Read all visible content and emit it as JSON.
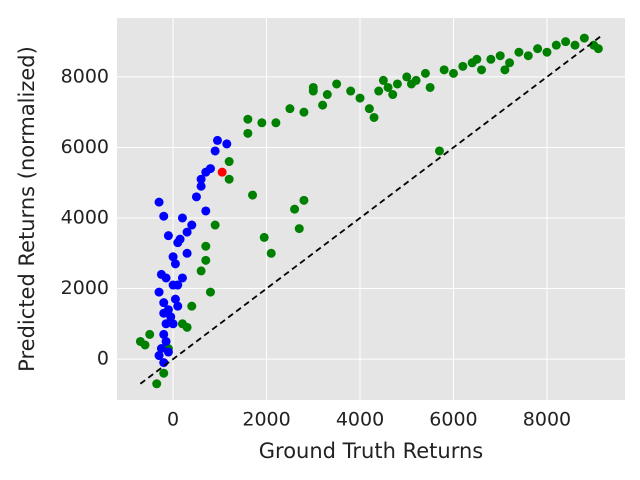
{
  "chart_data": {
    "type": "scatter",
    "x_label": "Ground Truth Returns",
    "y_label": "Predicted Returns (normalized)",
    "xlim": [
      -1200,
      9670
    ],
    "ylim": [
      -1160,
      9670
    ],
    "xticks": [
      0,
      2000,
      4000,
      6000,
      8000
    ],
    "yticks": [
      0,
      2000,
      4000,
      6000,
      8000
    ],
    "grid": true,
    "series": [
      {
        "color": "#008000",
        "x": [
          -700,
          -600,
          -500,
          -350,
          -200,
          -100,
          200,
          300,
          400,
          600,
          700,
          800,
          700,
          900,
          1200,
          1200,
          1700,
          1950,
          2100,
          2600,
          2700,
          2800,
          1600,
          1600,
          1900,
          2200,
          2500,
          2800,
          3000,
          3300,
          3500,
          3800,
          4000,
          4200,
          4300,
          4400,
          4500,
          4700,
          4800,
          5000,
          5200,
          5400,
          5500,
          5700,
          5800,
          6000,
          6200,
          6400,
          6600,
          6800,
          7000,
          7200,
          7400,
          7600,
          7800,
          8000,
          8200,
          8400,
          8600,
          8800,
          9000,
          9100,
          4600,
          5100,
          6500,
          7100,
          3000,
          3200
        ],
        "values": [
          500,
          400,
          700,
          -700,
          -400,
          300,
          1000,
          900,
          1500,
          2500,
          2800,
          1900,
          3200,
          3800,
          5600,
          5100,
          4650,
          3450,
          3000,
          4250,
          3700,
          4500,
          6400,
          6800,
          6700,
          6700,
          7100,
          7000,
          7600,
          7500,
          7800,
          7600,
          7400,
          7100,
          6850,
          7600,
          7900,
          7500,
          7800,
          8000,
          7900,
          8100,
          7700,
          5900,
          8200,
          8100,
          8300,
          8400,
          8200,
          8500,
          8600,
          8400,
          8700,
          8600,
          8800,
          8700,
          8900,
          9000,
          8900,
          9100,
          8900,
          8800,
          7700,
          7800,
          8500,
          8200,
          7700,
          7200
        ]
      },
      {
        "color": "#0000ff",
        "x": [
          -300,
          -200,
          -250,
          -150,
          -100,
          0,
          50,
          100,
          150,
          200,
          300,
          400,
          500,
          600,
          700,
          800,
          900,
          950,
          1150,
          700,
          600,
          -200,
          -100,
          -150,
          -200,
          -250,
          -300,
          -200,
          -150,
          100,
          50,
          0,
          -50,
          200,
          300,
          -300,
          0,
          100,
          -100,
          -200
        ],
        "values": [
          4450,
          4050,
          2400,
          2300,
          3500,
          2900,
          2700,
          3300,
          3400,
          4000,
          3600,
          3800,
          4600,
          5100,
          5300,
          5400,
          5900,
          6200,
          6100,
          4200,
          4900,
          1600,
          1400,
          1000,
          700,
          300,
          100,
          -100,
          500,
          2100,
          1700,
          2100,
          1200,
          2300,
          3000,
          1900,
          1000,
          1500,
          200,
          1300
        ]
      },
      {
        "color": "#ff0000",
        "x": [
          1050
        ],
        "values": [
          5300
        ]
      }
    ],
    "lines": [
      {
        "color": "#000000",
        "style": "dashed",
        "x": [
          -700,
          9200
        ],
        "values": [
          -700,
          9200
        ]
      }
    ]
  }
}
